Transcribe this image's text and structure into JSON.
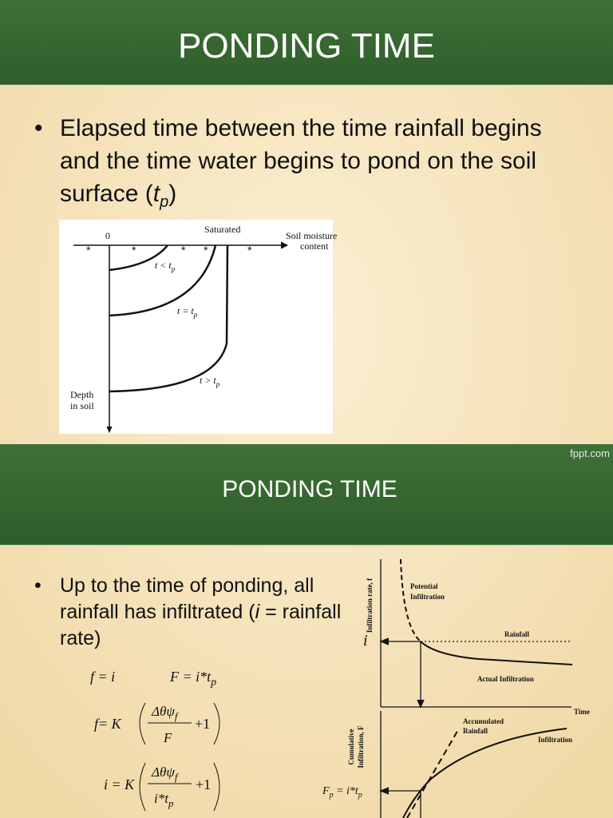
{
  "slides": [
    {
      "title": "PONDING TIME",
      "bullet": {
        "text": "Elapsed time between the time rainfall begins and the time water begins to pond on the soil surface (",
        "var": "t",
        "sub": "p",
        "end": ")"
      },
      "figure": {
        "origin": "0",
        "saturated": "Saturated",
        "x_label": [
          "Soil moisture",
          "content"
        ],
        "curves": [
          {
            "text": "t < t",
            "sub": "p"
          },
          {
            "text": "t = t",
            "sub": "p"
          },
          {
            "text": "t > t",
            "sub": "p"
          }
        ],
        "y_label": [
          "Depth",
          "in soil"
        ]
      }
    },
    {
      "brand": "fppt.com",
      "title": "PONDING TIME",
      "bullet": {
        "text": "Up to the time of ponding, all rainfall has infiltrated (",
        "var": "i",
        "end": " = rainfall rate)"
      },
      "equations": [
        {
          "text": "f = i"
        },
        {
          "text": "F = i*t",
          "sub": "p"
        },
        {
          "lhs": "f= K",
          "num": "Δθψ",
          "num_sub": "f",
          "den": "F",
          "plus": "+1"
        },
        {
          "lhs": "i = K",
          "num": "Δθψ",
          "num_sub": "f",
          "den": "i*t",
          "den_sub": "p",
          "plus": "+1"
        }
      ],
      "graph": {
        "y_label": "Infiltration rate, f",
        "potential": [
          "Potential",
          "Infiltration"
        ],
        "i": "i",
        "rainfall": "Rainfall",
        "actual": "Actual Infiltration",
        "time": "Time",
        "y2_label": [
          "Cumulative",
          "Infiltration, F"
        ],
        "accumulated": [
          "Accumulated",
          "Rainfall"
        ],
        "infiltration": "Infiltration",
        "fp": {
          "text": "F",
          "sub": "p",
          "eq": " = i*t",
          "sub2": "p"
        }
      }
    }
  ]
}
